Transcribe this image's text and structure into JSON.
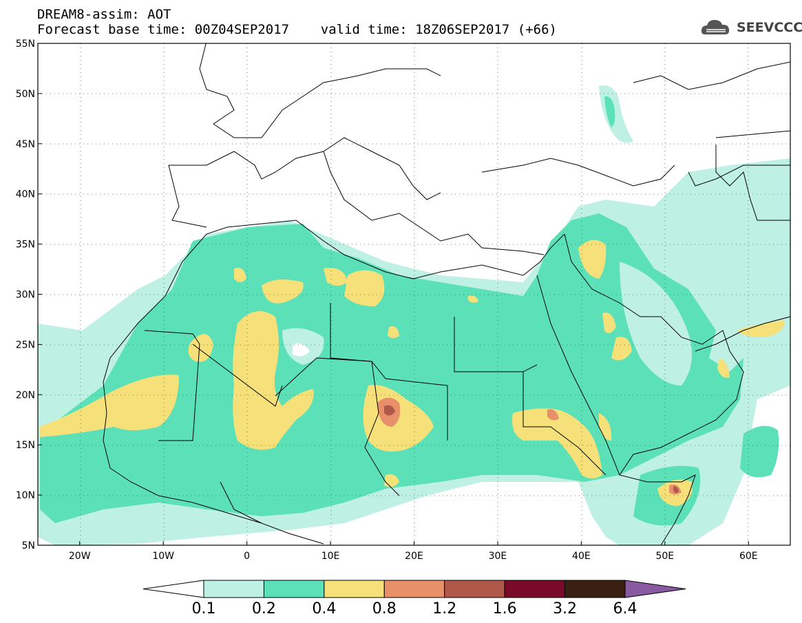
{
  "header": {
    "line1": "DREAM8-assim: AOT",
    "line2": "Forecast base time: 00Z04SEP2017    valid time: 18Z06SEP2017 (+66)"
  },
  "logo": {
    "name": "SEEVCCC",
    "icon": "cloud-logo-icon"
  },
  "map": {
    "lon_range": [
      -25,
      65
    ],
    "lat_range": [
      5,
      55
    ],
    "lat_ticks": [
      "5N",
      "10N",
      "15N",
      "20N",
      "25N",
      "30N",
      "35N",
      "40N",
      "45N",
      "50N",
      "55N"
    ],
    "lon_ticks": [
      "20W",
      "10W",
      "0",
      "10E",
      "20E",
      "30E",
      "40E",
      "50E",
      "60E"
    ]
  },
  "colorbar": {
    "labels": [
      "0.1",
      "0.2",
      "0.4",
      "0.8",
      "1.2",
      "1.6",
      "3.2",
      "6.4"
    ],
    "colors": [
      "#ffffff",
      "#bff0e4",
      "#5ce0b8",
      "#f5e07a",
      "#e8906a",
      "#b0584a",
      "#7a0a2a",
      "#3a2010",
      "#8a5aa0"
    ]
  }
}
